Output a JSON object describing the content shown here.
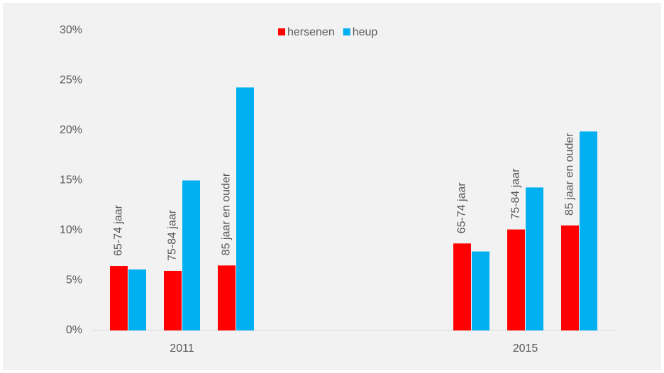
{
  "chart_data": {
    "type": "grouped_bar",
    "groups": [
      {
        "label": "2011",
        "categories": [
          "65-74 jaar",
          "75-84 jaar",
          "85 jaar en ouder"
        ]
      },
      {
        "label": "2015",
        "categories": [
          "65-74 jaar",
          "75-84 jaar",
          "85 jaar en ouder"
        ]
      }
    ],
    "series": [
      {
        "name": "hersenen",
        "color": "#ff0000",
        "values": [
          [
            6.45,
            5.96,
            6.5
          ],
          [
            8.7,
            10.1,
            10.5
          ]
        ]
      },
      {
        "name": "heup",
        "color": "#00b0f0",
        "values": [
          [
            6.1,
            15.0,
            24.3
          ],
          [
            7.9,
            14.3,
            19.9
          ]
        ]
      }
    ],
    "ylim": [
      0,
      30
    ],
    "yticks": [
      {
        "value": 0,
        "label": "0%"
      },
      {
        "value": 5,
        "label": "5%"
      },
      {
        "value": 10,
        "label": "10%"
      },
      {
        "value": 15,
        "label": "15%"
      },
      {
        "value": 20,
        "label": "20%"
      },
      {
        "value": 25,
        "label": "25%"
      },
      {
        "value": 30,
        "label": "30%"
      }
    ],
    "legend": "top"
  }
}
